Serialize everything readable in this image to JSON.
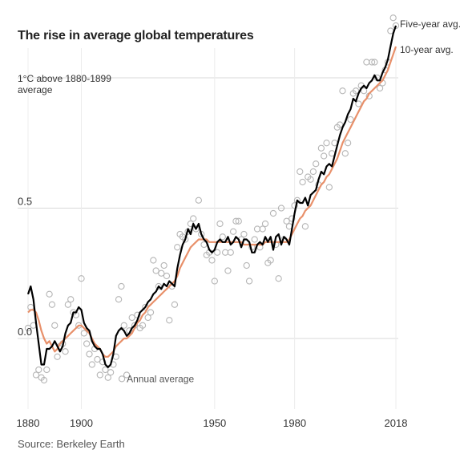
{
  "title": "The rise in average global temperatures",
  "source": "Source: Berkeley Earth",
  "colors": {
    "five_year": "#000000",
    "ten_year": "#e8906a",
    "annual": "#b5b5b5",
    "grid": "#d8d8d8",
    "text": "#333333"
  },
  "chart_data": {
    "type": "line",
    "title": "The rise in average global temperatures",
    "xlabel": "",
    "ylabel": "",
    "xlim": [
      1880,
      2018
    ],
    "ylim": [
      -0.25,
      1.25
    ],
    "grid": true,
    "x_ticks": [
      {
        "value": 1880,
        "label": "1880"
      },
      {
        "value": 1900,
        "label": "1900"
      },
      {
        "value": 1950,
        "label": "1950"
      },
      {
        "value": 1980,
        "label": "1980"
      },
      {
        "value": 2018,
        "label": "2018"
      }
    ],
    "y_ticks": [
      {
        "value": 0,
        "label": "0.0"
      },
      {
        "value": 0.5,
        "label": "0.5"
      },
      {
        "value": 1,
        "label": "1°C above 1880-1899",
        "label2": "average"
      }
    ],
    "annotations": {
      "annual": {
        "text": "Annual average",
        "x": 1917,
        "y": -0.155
      },
      "five_year": {
        "text": "Five-year avg."
      },
      "ten_year": {
        "text": "10-year avg."
      }
    },
    "series": [
      {
        "name": "Annual average",
        "kind": "scatter",
        "x": [
          1880,
          1881,
          1882,
          1883,
          1884,
          1885,
          1886,
          1887,
          1888,
          1889,
          1890,
          1891,
          1892,
          1893,
          1894,
          1895,
          1896,
          1897,
          1898,
          1899,
          1900,
          1901,
          1902,
          1903,
          1904,
          1905,
          1906,
          1907,
          1908,
          1909,
          1910,
          1911,
          1912,
          1913,
          1914,
          1915,
          1916,
          1917,
          1918,
          1919,
          1920,
          1921,
          1922,
          1923,
          1924,
          1925,
          1926,
          1927,
          1928,
          1929,
          1930,
          1931,
          1932,
          1933,
          1934,
          1935,
          1936,
          1937,
          1938,
          1939,
          1940,
          1941,
          1942,
          1943,
          1944,
          1945,
          1946,
          1947,
          1948,
          1949,
          1950,
          1951,
          1952,
          1953,
          1954,
          1955,
          1956,
          1957,
          1958,
          1959,
          1960,
          1961,
          1962,
          1963,
          1964,
          1965,
          1966,
          1967,
          1968,
          1969,
          1970,
          1971,
          1972,
          1973,
          1974,
          1975,
          1976,
          1977,
          1978,
          1979,
          1980,
          1981,
          1982,
          1983,
          1984,
          1985,
          1986,
          1987,
          1988,
          1989,
          1990,
          1991,
          1992,
          1993,
          1994,
          1995,
          1996,
          1997,
          1998,
          1999,
          2000,
          2001,
          2002,
          2003,
          2004,
          2005,
          2006,
          2007,
          2008,
          2009,
          2010,
          2011,
          2012,
          2013,
          2014,
          2015,
          2016,
          2017,
          2018
        ],
        "y": [
          0.04,
          0.12,
          0.05,
          -0.14,
          -0.12,
          -0.15,
          -0.16,
          -0.12,
          0.17,
          0.13,
          0.05,
          -0.07,
          -0.03,
          -0.02,
          -0.05,
          0.13,
          0.15,
          0.1,
          0.09,
          0.05,
          0.23,
          0.02,
          -0.02,
          -0.06,
          -0.1,
          -0.04,
          -0.08,
          -0.14,
          -0.09,
          -0.12,
          -0.15,
          -0.13,
          -0.1,
          -0.07,
          0.15,
          0.2,
          0.05,
          -0.14,
          0.03,
          0.08,
          0.05,
          0.09,
          0.04,
          0.05,
          0.12,
          0.08,
          0.1,
          0.3,
          0.26,
          0.2,
          0.25,
          0.28,
          0.24,
          0.07,
          0.2,
          0.13,
          0.35,
          0.4,
          0.39,
          0.38,
          0.41,
          0.44,
          0.46,
          0.42,
          0.53,
          0.4,
          0.36,
          0.32,
          0.33,
          0.3,
          0.22,
          0.33,
          0.44,
          0.39,
          0.33,
          0.26,
          0.33,
          0.41,
          0.45,
          0.45,
          0.38,
          0.4,
          0.28,
          0.22,
          0.35,
          0.38,
          0.42,
          0.35,
          0.42,
          0.44,
          0.29,
          0.3,
          0.48,
          0.36,
          0.23,
          0.5,
          0.38,
          0.45,
          0.43,
          0.46,
          0.51,
          0.53,
          0.64,
          0.6,
          0.43,
          0.62,
          0.61,
          0.64,
          0.67,
          0.59,
          0.73,
          0.7,
          0.75,
          0.58,
          0.71,
          0.75,
          0.81,
          0.82,
          0.95,
          0.71,
          0.75,
          0.84,
          0.94,
          0.95,
          0.9,
          0.97,
          0.95,
          1.06,
          0.93,
          1.06,
          1.06,
          1.0,
          0.96,
          0.98,
          1.03,
          1.06,
          1.18,
          1.23,
          1.2
        ]
      },
      {
        "name": "Five-year avg.",
        "kind": "line",
        "x": [
          1880,
          1881,
          1882,
          1883,
          1884,
          1885,
          1886,
          1887,
          1888,
          1889,
          1890,
          1891,
          1892,
          1893,
          1894,
          1895,
          1896,
          1897,
          1898,
          1899,
          1900,
          1901,
          1902,
          1903,
          1904,
          1905,
          1906,
          1907,
          1908,
          1909,
          1910,
          1911,
          1912,
          1913,
          1914,
          1915,
          1916,
          1917,
          1918,
          1919,
          1920,
          1921,
          1922,
          1923,
          1924,
          1925,
          1926,
          1927,
          1928,
          1929,
          1930,
          1931,
          1932,
          1933,
          1934,
          1935,
          1936,
          1937,
          1938,
          1939,
          1940,
          1941,
          1942,
          1943,
          1944,
          1945,
          1946,
          1947,
          1948,
          1949,
          1950,
          1951,
          1952,
          1953,
          1954,
          1955,
          1956,
          1957,
          1958,
          1959,
          1960,
          1961,
          1962,
          1963,
          1964,
          1965,
          1966,
          1967,
          1968,
          1969,
          1970,
          1971,
          1972,
          1973,
          1974,
          1975,
          1976,
          1977,
          1978,
          1979,
          1980,
          1981,
          1982,
          1983,
          1984,
          1985,
          1986,
          1987,
          1988,
          1989,
          1990,
          1991,
          1992,
          1993,
          1994,
          1995,
          1996,
          1997,
          1998,
          1999,
          2000,
          2001,
          2002,
          2003,
          2004,
          2005,
          2006,
          2007,
          2008,
          2009,
          2010,
          2011,
          2012,
          2013,
          2014,
          2015,
          2016,
          2017,
          2018
        ],
        "y": [
          0.17,
          0.2,
          0.15,
          0.06,
          -0.02,
          -0.1,
          -0.1,
          -0.04,
          -0.04,
          -0.03,
          -0.01,
          -0.03,
          -0.05,
          -0.03,
          0.02,
          0.05,
          0.06,
          0.1,
          0.1,
          0.12,
          0.11,
          0.06,
          0.04,
          0.03,
          -0.01,
          -0.03,
          -0.04,
          -0.04,
          -0.06,
          -0.1,
          -0.11,
          -0.1,
          -0.06,
          0.01,
          0.03,
          0.04,
          0.03,
          0.01,
          0.02,
          0.04,
          0.05,
          0.07,
          0.1,
          0.11,
          0.12,
          0.14,
          0.15,
          0.17,
          0.18,
          0.2,
          0.19,
          0.21,
          0.2,
          0.22,
          0.21,
          0.2,
          0.27,
          0.32,
          0.36,
          0.38,
          0.42,
          0.4,
          0.44,
          0.42,
          0.44,
          0.4,
          0.38,
          0.37,
          0.34,
          0.33,
          0.34,
          0.37,
          0.38,
          0.37,
          0.37,
          0.39,
          0.36,
          0.37,
          0.39,
          0.38,
          0.35,
          0.38,
          0.38,
          0.37,
          0.33,
          0.33,
          0.36,
          0.37,
          0.36,
          0.39,
          0.37,
          0.39,
          0.34,
          0.39,
          0.4,
          0.36,
          0.39,
          0.38,
          0.36,
          0.42,
          0.48,
          0.53,
          0.52,
          0.52,
          0.54,
          0.51,
          0.55,
          0.56,
          0.57,
          0.61,
          0.64,
          0.63,
          0.66,
          0.67,
          0.66,
          0.7,
          0.74,
          0.78,
          0.81,
          0.83,
          0.86,
          0.88,
          0.92,
          0.91,
          0.94,
          0.96,
          0.97,
          0.96,
          0.98,
          0.99,
          1.01,
          0.99,
          0.99,
          1.02,
          1.04,
          1.07,
          1.12,
          1.17,
          1.2
        ]
      },
      {
        "name": "10-year avg.",
        "kind": "line",
        "x": [
          1880,
          1881,
          1882,
          1883,
          1884,
          1885,
          1886,
          1887,
          1888,
          1889,
          1890,
          1891,
          1892,
          1893,
          1894,
          1895,
          1896,
          1897,
          1898,
          1899,
          1900,
          1901,
          1902,
          1903,
          1904,
          1905,
          1906,
          1907,
          1908,
          1909,
          1910,
          1911,
          1912,
          1913,
          1914,
          1915,
          1916,
          1917,
          1918,
          1919,
          1920,
          1921,
          1922,
          1923,
          1924,
          1925,
          1926,
          1927,
          1928,
          1929,
          1930,
          1931,
          1932,
          1933,
          1934,
          1935,
          1936,
          1937,
          1938,
          1939,
          1940,
          1941,
          1942,
          1943,
          1944,
          1945,
          1946,
          1947,
          1948,
          1949,
          1950,
          1951,
          1952,
          1953,
          1954,
          1955,
          1956,
          1957,
          1958,
          1959,
          1960,
          1961,
          1962,
          1963,
          1964,
          1965,
          1966,
          1967,
          1968,
          1969,
          1970,
          1971,
          1972,
          1973,
          1974,
          1975,
          1976,
          1977,
          1978,
          1979,
          1980,
          1981,
          1982,
          1983,
          1984,
          1985,
          1986,
          1987,
          1988,
          1989,
          1990,
          1991,
          1992,
          1993,
          1994,
          1995,
          1996,
          1997,
          1998,
          1999,
          2000,
          2001,
          2002,
          2003,
          2004,
          2005,
          2006,
          2007,
          2008,
          2009,
          2010,
          2011,
          2012,
          2013,
          2014,
          2015,
          2016,
          2017,
          2018
        ],
        "y": [
          0.1,
          0.11,
          0.11,
          0.1,
          0.07,
          0.03,
          0.0,
          -0.02,
          -0.01,
          -0.03,
          -0.05,
          -0.04,
          -0.02,
          -0.01,
          0.0,
          0.01,
          0.02,
          0.03,
          0.04,
          0.05,
          0.05,
          0.04,
          0.03,
          0.02,
          0.0,
          -0.02,
          -0.03,
          -0.04,
          -0.06,
          -0.07,
          -0.07,
          -0.06,
          -0.05,
          -0.03,
          -0.02,
          -0.01,
          0.0,
          0.0,
          0.01,
          0.02,
          0.04,
          0.06,
          0.07,
          0.09,
          0.1,
          0.12,
          0.13,
          0.14,
          0.15,
          0.16,
          0.17,
          0.18,
          0.19,
          0.2,
          0.21,
          0.22,
          0.24,
          0.27,
          0.29,
          0.31,
          0.33,
          0.35,
          0.36,
          0.37,
          0.38,
          0.38,
          0.38,
          0.38,
          0.37,
          0.37,
          0.37,
          0.37,
          0.37,
          0.37,
          0.37,
          0.37,
          0.37,
          0.37,
          0.37,
          0.37,
          0.37,
          0.36,
          0.36,
          0.36,
          0.36,
          0.36,
          0.36,
          0.36,
          0.36,
          0.37,
          0.37,
          0.37,
          0.37,
          0.37,
          0.37,
          0.37,
          0.37,
          0.37,
          0.38,
          0.4,
          0.42,
          0.44,
          0.46,
          0.47,
          0.49,
          0.5,
          0.51,
          0.53,
          0.55,
          0.57,
          0.59,
          0.6,
          0.62,
          0.63,
          0.65,
          0.67,
          0.69,
          0.72,
          0.75,
          0.77,
          0.79,
          0.81,
          0.83,
          0.85,
          0.87,
          0.89,
          0.91,
          0.92,
          0.94,
          0.95,
          0.96,
          0.97,
          0.98,
          0.99,
          1.01,
          1.03,
          1.06,
          1.09,
          1.12
        ]
      }
    ]
  }
}
